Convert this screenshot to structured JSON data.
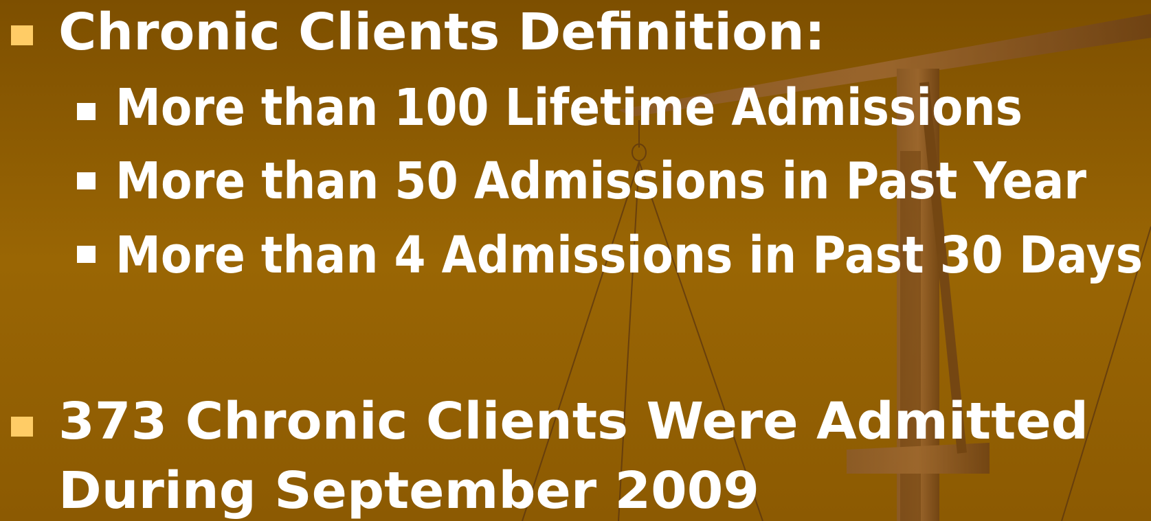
{
  "slide": {
    "items": [
      {
        "lines": [
          "Chronic Clients Definition:"
        ],
        "subitems": [
          "More than 100 Lifetime Admissions",
          "More than 50 Admissions in Past Year",
          "More than 4 Admissions in Past 30 Days"
        ]
      },
      {
        "lines": [
          "373 Chronic Clients Were Admitted",
          "During September 2009"
        ]
      }
    ]
  }
}
